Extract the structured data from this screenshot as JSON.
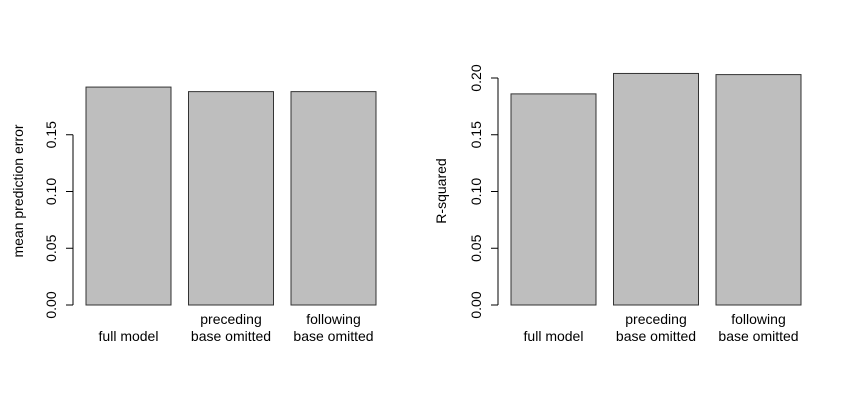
{
  "chart_data": [
    {
      "type": "bar",
      "title": "",
      "xlabel": "",
      "ylabel": "mean prediction error",
      "categories": [
        [
          "full model"
        ],
        [
          "preceding",
          "base omitted"
        ],
        [
          "following",
          "base omitted"
        ]
      ],
      "values": [
        0.192,
        0.188,
        0.188
      ],
      "ylim": [
        0,
        0.2
      ],
      "yticks": [
        "0.00",
        "0.05",
        "0.10",
        "0.15"
      ],
      "bar_color": "#bebebe",
      "grid": false,
      "legend": "none"
    },
    {
      "type": "bar",
      "title": "",
      "xlabel": "",
      "ylabel": "R-squared",
      "categories": [
        [
          "full model"
        ],
        [
          "preceding",
          "base omitted"
        ],
        [
          "following",
          "base omitted"
        ]
      ],
      "values": [
        0.186,
        0.204,
        0.203
      ],
      "ylim": [
        0,
        0.2
      ],
      "yticks": [
        "0.00",
        "0.05",
        "0.10",
        "0.15",
        "0.20"
      ],
      "bar_color": "#bebebe",
      "grid": false,
      "legend": "none"
    }
  ]
}
